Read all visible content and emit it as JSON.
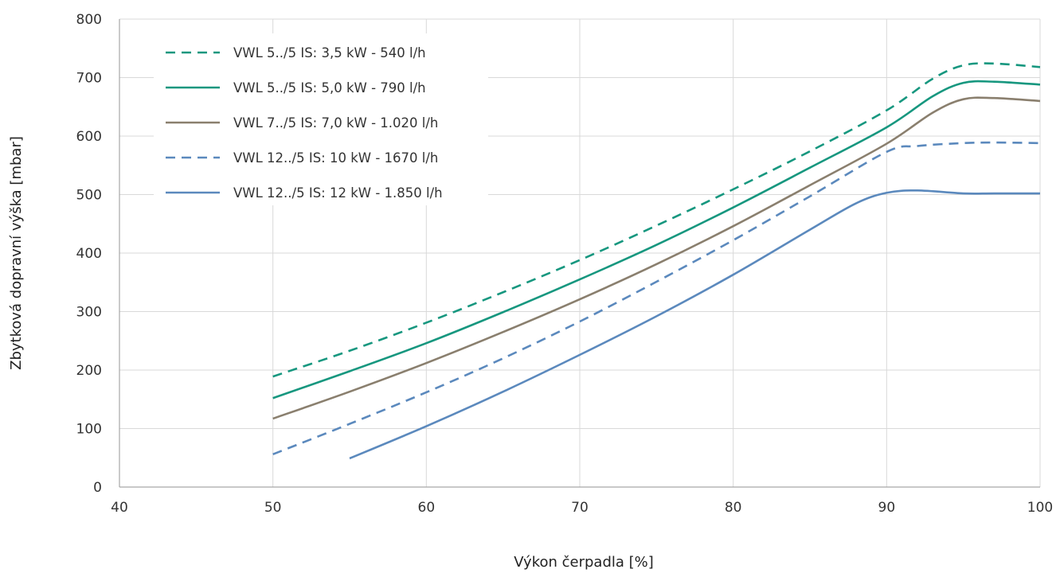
{
  "chart_data": {
    "type": "line",
    "title": "",
    "xlabel": "Výkon čerpadla [%]",
    "ylabel": "Zbytková dopravní výška [mbar]",
    "xlim": [
      40,
      100
    ],
    "ylim": [
      0,
      800
    ],
    "xticks": [
      "40",
      "50",
      "60",
      "70",
      "80",
      "90",
      "100"
    ],
    "yticks": [
      "0",
      "100",
      "200",
      "300",
      "400",
      "500",
      "600",
      "700",
      "800"
    ],
    "grid": true,
    "legend_position": "top-left",
    "series": [
      {
        "name": "VWL 5../5 IS:  3,5 kW - 540 l/h",
        "color": "#17977f",
        "dash": "dashed",
        "x": [
          50,
          55,
          60,
          65,
          70,
          75,
          80,
          85,
          90,
          93,
          95,
          97,
          100
        ],
        "y": [
          189,
          233,
          281,
          333,
          388,
          447,
          509,
          574,
          644,
          698,
          721,
          724,
          718
        ]
      },
      {
        "name": "VWL 5../5 IS:  5,0 kW - 790 l/h",
        "color": "#17977f",
        "dash": "solid",
        "x": [
          50,
          55,
          60,
          65,
          70,
          75,
          80,
          85,
          90,
          93,
          95,
          97,
          100
        ],
        "y": [
          152,
          198,
          246,
          299,
          355,
          414,
          478,
          546,
          615,
          668,
          691,
          693,
          688
        ]
      },
      {
        "name": "VWL 7../5 IS:  7,0 kW - 1.020 l/h",
        "color": "#8a7f6e",
        "dash": "solid",
        "x": [
          50,
          55,
          60,
          65,
          70,
          75,
          80,
          85,
          90,
          93,
          95,
          97,
          100
        ],
        "y": [
          117,
          163,
          212,
          265,
          321,
          381,
          446,
          516,
          587,
          640,
          663,
          665,
          660
        ]
      },
      {
        "name": "VWL 12../5 IS:  10 kW - 1670 l/h",
        "color": "#5b89bd",
        "dash": "dashed",
        "x": [
          50,
          55,
          60,
          65,
          70,
          75,
          80,
          85,
          90,
          92,
          95,
          97,
          100
        ],
        "y": [
          56,
          108,
          162,
          220,
          283,
          351,
          422,
          497,
          573,
          583,
          588,
          589,
          588
        ]
      },
      {
        "name": "VWL 12../5 IS:  12 kW - 1.850 l/h",
        "color": "#5b89bd",
        "dash": "solid",
        "x": [
          55,
          60,
          65,
          70,
          75,
          80,
          85,
          88,
          90,
          92,
          95,
          97,
          100
        ],
        "y": [
          49,
          104,
          163,
          226,
          292,
          363,
          440,
          485,
          503,
          507,
          502,
          502,
          502
        ]
      }
    ]
  }
}
